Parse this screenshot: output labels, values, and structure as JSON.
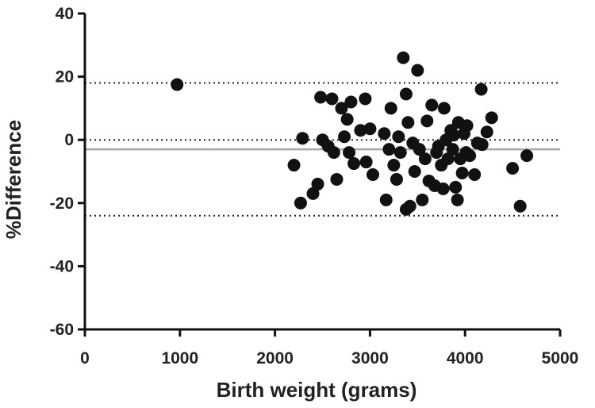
{
  "chart_data": {
    "type": "scatter",
    "title": "",
    "xlabel": "Birth weight (grams)",
    "ylabel": "%Difference",
    "xlim": [
      0,
      5000
    ],
    "ylim": [
      -60,
      40
    ],
    "x_ticks": [
      0,
      1000,
      2000,
      3000,
      4000,
      5000
    ],
    "y_ticks": [
      40,
      20,
      0,
      -20,
      -40,
      -60
    ],
    "grid": false,
    "legend": "none",
    "reference_lines": [
      {
        "y": 18,
        "style": "dotted",
        "color": "#222222"
      },
      {
        "y": 0,
        "style": "dotted",
        "color": "#222222"
      },
      {
        "y": -24,
        "style": "dotted",
        "color": "#222222"
      },
      {
        "y": -3,
        "style": "solid",
        "color": "#a8a8a8"
      }
    ],
    "marker_color": "#111111",
    "points": [
      [
        970,
        17.5
      ],
      [
        2200,
        -8
      ],
      [
        2270,
        -20
      ],
      [
        2290,
        0.5
      ],
      [
        2400,
        -17
      ],
      [
        2450,
        -14
      ],
      [
        2480,
        13.5
      ],
      [
        2500,
        0
      ],
      [
        2560,
        -2
      ],
      [
        2600,
        13
      ],
      [
        2620,
        -4
      ],
      [
        2650,
        -12.5
      ],
      [
        2700,
        10
      ],
      [
        2730,
        1
      ],
      [
        2760,
        6.5
      ],
      [
        2780,
        -4
      ],
      [
        2800,
        12
      ],
      [
        2830,
        -7.5
      ],
      [
        2900,
        3
      ],
      [
        2950,
        13
      ],
      [
        2960,
        -7
      ],
      [
        3000,
        3.5
      ],
      [
        3030,
        -11
      ],
      [
        3150,
        2
      ],
      [
        3170,
        -19
      ],
      [
        3200,
        -3
      ],
      [
        3220,
        10
      ],
      [
        3250,
        -8
      ],
      [
        3280,
        -12.5
      ],
      [
        3300,
        1
      ],
      [
        3320,
        -4
      ],
      [
        3350,
        26
      ],
      [
        3380,
        14.5
      ],
      [
        3380,
        -22
      ],
      [
        3400,
        5.5
      ],
      [
        3420,
        -21
      ],
      [
        3450,
        -1
      ],
      [
        3470,
        -10
      ],
      [
        3500,
        22
      ],
      [
        3520,
        -3
      ],
      [
        3550,
        -19
      ],
      [
        3580,
        -6
      ],
      [
        3600,
        6
      ],
      [
        3620,
        -13
      ],
      [
        3650,
        11
      ],
      [
        3680,
        -14.5
      ],
      [
        3700,
        -4
      ],
      [
        3720,
        -2
      ],
      [
        3750,
        -8
      ],
      [
        3770,
        -15.5
      ],
      [
        3780,
        10
      ],
      [
        3800,
        0
      ],
      [
        3820,
        -6
      ],
      [
        3850,
        3
      ],
      [
        3870,
        -3
      ],
      [
        3880,
        1.5
      ],
      [
        3900,
        -15
      ],
      [
        3920,
        -19
      ],
      [
        3930,
        5.5
      ],
      [
        3950,
        -6
      ],
      [
        3970,
        -10.5
      ],
      [
        3990,
        2
      ],
      [
        4010,
        -4
      ],
      [
        4020,
        4.5
      ],
      [
        4050,
        -5
      ],
      [
        4100,
        -11
      ],
      [
        4130,
        -1
      ],
      [
        4170,
        16
      ],
      [
        4180,
        -1.5
      ],
      [
        4230,
        2.5
      ],
      [
        4280,
        7
      ],
      [
        4500,
        -9
      ],
      [
        4580,
        -21
      ],
      [
        4650,
        -5
      ]
    ]
  }
}
